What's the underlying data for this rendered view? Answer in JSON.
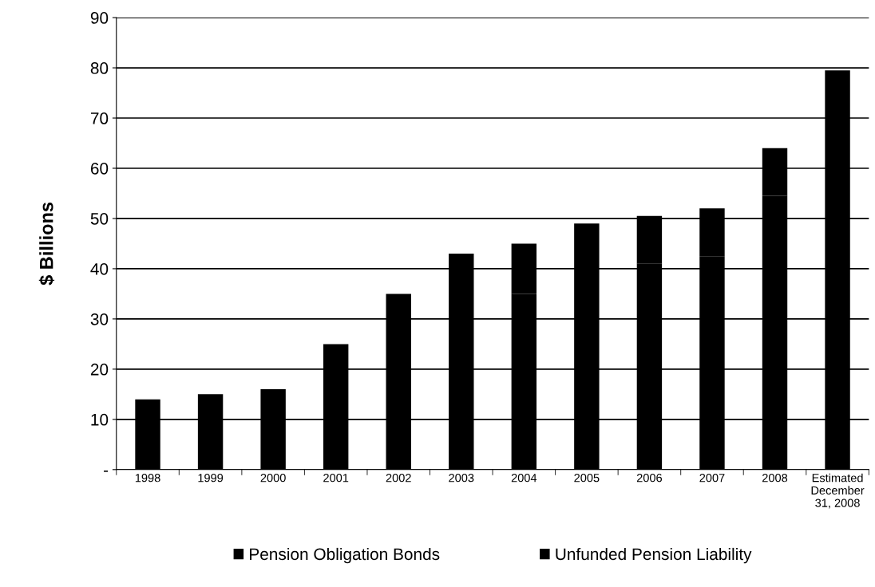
{
  "chart_data": {
    "type": "bar",
    "stacked": true,
    "ylabel": "$ Billions",
    "categories": [
      "1998",
      "1999",
      "2000",
      "2001",
      "2002",
      "2003",
      "2004",
      "2005",
      "2006",
      "2007",
      "2008",
      "Estimated\nDecember\n31, 2008"
    ],
    "series": [
      {
        "name": "Unfunded Pension Liability",
        "color": "#000000",
        "values": [
          14,
          15,
          16,
          25,
          35,
          43,
          35,
          39.5,
          41,
          42.5,
          54.5,
          70
        ]
      },
      {
        "name": "Pension Obligation Bonds",
        "color": "#000000",
        "values": [
          null,
          null,
          null,
          null,
          null,
          null,
          10,
          9.5,
          9.5,
          9.5,
          9.5,
          9.5
        ]
      }
    ],
    "ylim": [
      0,
      90
    ],
    "yticks": [
      {
        "value": 0,
        "label": "-"
      },
      10,
      20,
      30,
      40,
      50,
      60,
      70,
      80,
      90
    ],
    "grid": "y",
    "legend": "bottom"
  }
}
